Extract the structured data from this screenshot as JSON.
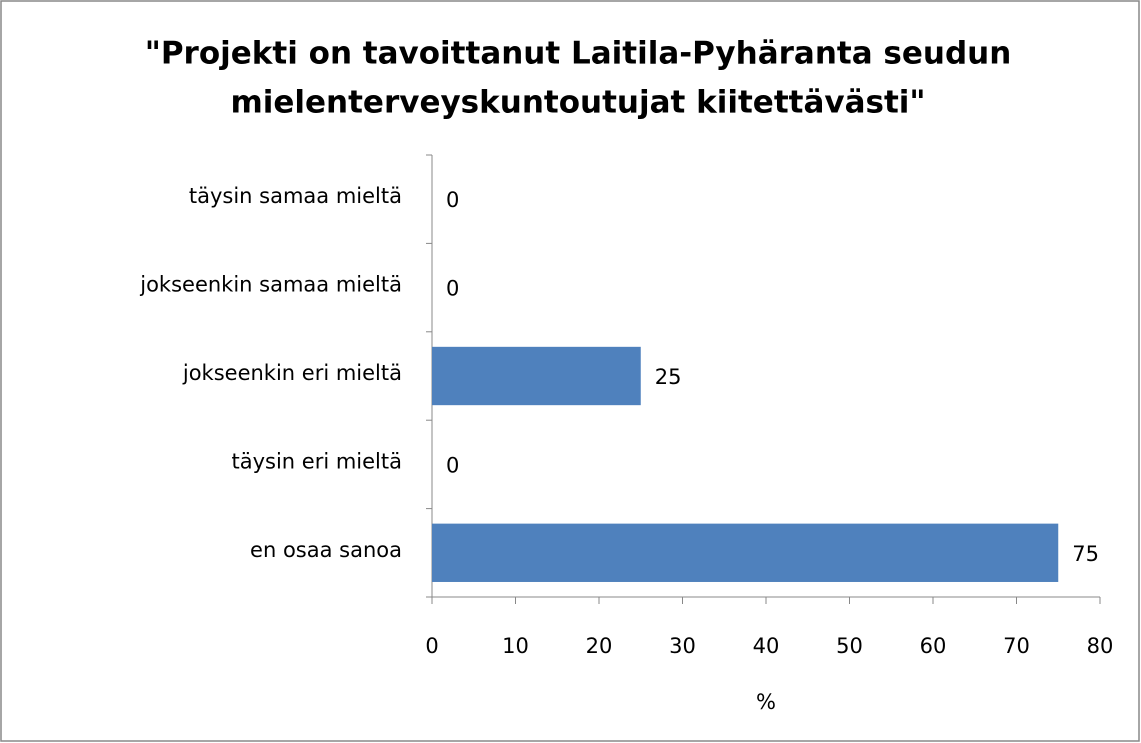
{
  "chart_data": {
    "type": "bar",
    "orientation": "horizontal",
    "title": [
      "\"Projekti on tavoittanut Laitila-Pyhäranta seudun",
      "mielenterveyskuntoutujat kiitettävästi\""
    ],
    "categories": [
      "täysin samaa mieltä",
      "jokseenkin samaa mieltä",
      "jokseenkin eri mieltä",
      "täysin eri mieltä",
      "en osaa sanoa"
    ],
    "values": [
      0,
      0,
      25,
      0,
      75
    ],
    "color": "#4f81bd",
    "x_label": "%",
    "xlim": [
      0,
      80
    ],
    "xticks": [
      0,
      10,
      20,
      30,
      40,
      50,
      60,
      70,
      80
    ],
    "grid": false
  }
}
